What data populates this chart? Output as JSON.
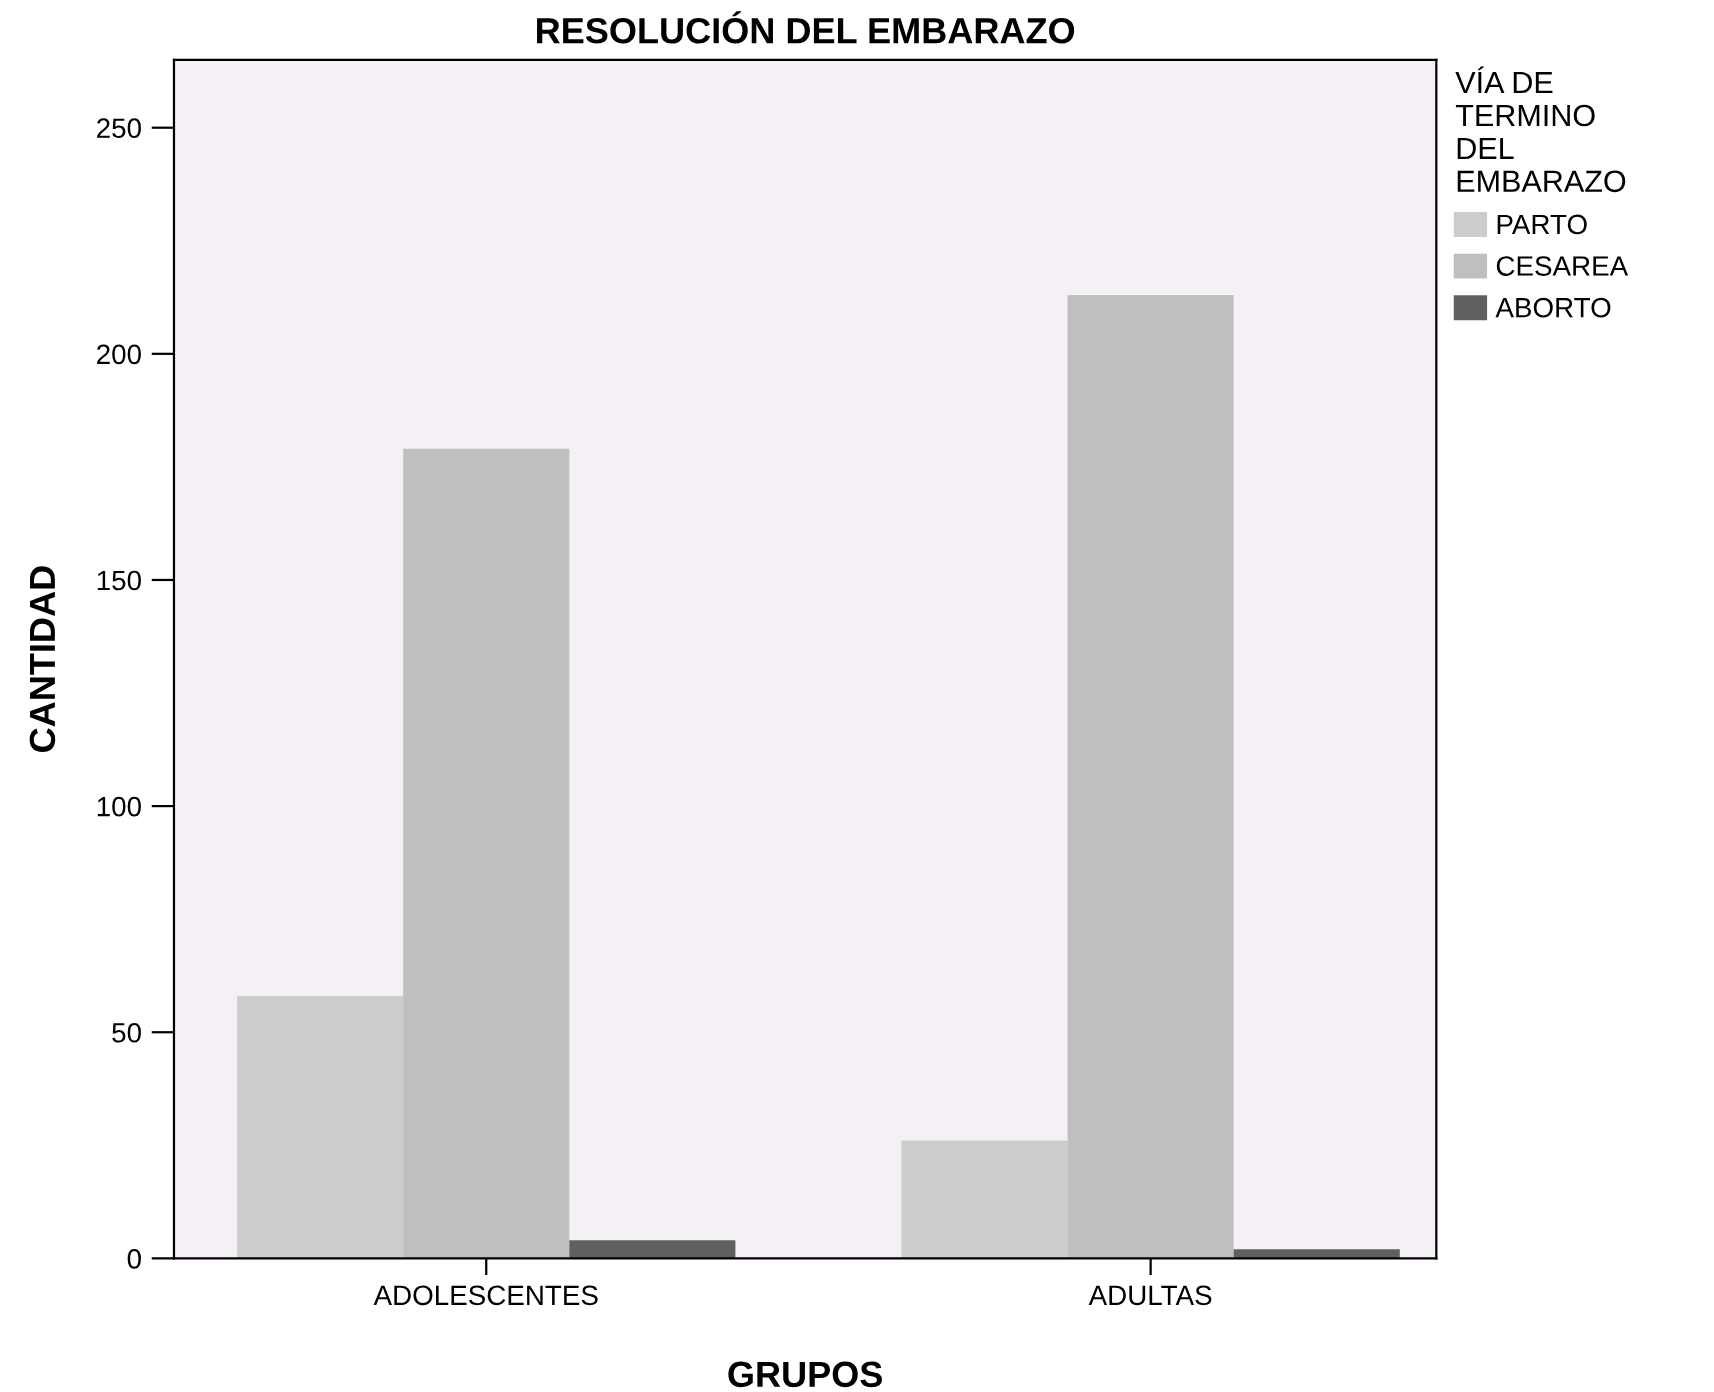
{
  "chart_data": {
    "type": "bar",
    "title": "RESOLUCIÓN DEL EMBARAZO",
    "xlabel": "GRUPOS",
    "ylabel": "CANTIDAD",
    "legend_title": "VÍA DE\nTERMINO\nDEL\nEMBARAZO",
    "categories": [
      "ADOLESCENTES",
      "ADULTAS"
    ],
    "series": [
      {
        "name": "PARTO",
        "color": "#cccccc",
        "values": [
          58,
          26
        ]
      },
      {
        "name": "CESAREA",
        "color": "#bfbfbf",
        "values": [
          179,
          213
        ]
      },
      {
        "name": "ABORTO",
        "color": "#606060",
        "values": [
          4,
          2
        ]
      }
    ],
    "ylim": [
      0,
      265
    ],
    "yticks": [
      0,
      50,
      100,
      150,
      200,
      250
    ],
    "grid": false,
    "legend": "top right"
  }
}
